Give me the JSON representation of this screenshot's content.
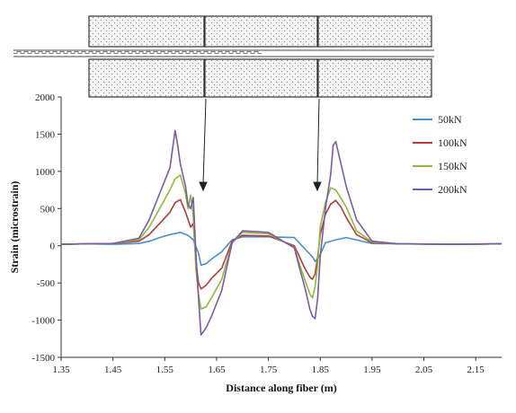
{
  "chart_data": {
    "type": "line",
    "xlabel": "Distance along fiber (m)",
    "ylabel": "Strain (microstrain)",
    "xlim": [
      1.35,
      2.2
    ],
    "ylim": [
      -1500,
      2000
    ],
    "xticks": [
      "1.35",
      "1.45",
      "1.55",
      "1.65",
      "1.75",
      "1.85",
      "1.95",
      "2.05",
      "2.15"
    ],
    "yticks": [
      "-1500",
      "-1000",
      "-500",
      "0",
      "500",
      "1000",
      "1500",
      "2000"
    ],
    "grid": false,
    "legend_position": "top-right",
    "series": [
      {
        "name": "50kN",
        "color": "#4a90c8",
        "x": [
          1.35,
          1.4,
          1.45,
          1.5,
          1.52,
          1.54,
          1.56,
          1.58,
          1.595,
          1.605,
          1.615,
          1.62,
          1.63,
          1.64,
          1.66,
          1.68,
          1.7,
          1.75,
          1.8,
          1.82,
          1.835,
          1.84,
          1.845,
          1.85,
          1.86,
          1.88,
          1.9,
          1.95,
          2.0,
          2.1,
          2.2
        ],
        "y": [
          20,
          25,
          20,
          30,
          60,
          110,
          150,
          180,
          140,
          80,
          -100,
          -260,
          -240,
          -180,
          -80,
          80,
          120,
          120,
          110,
          -40,
          -150,
          -210,
          -180,
          -120,
          40,
          80,
          110,
          30,
          25,
          20,
          25
        ]
      },
      {
        "name": "100kN",
        "color": "#b53a3a",
        "x": [
          1.35,
          1.4,
          1.45,
          1.5,
          1.52,
          1.54,
          1.56,
          1.57,
          1.58,
          1.59,
          1.6,
          1.605,
          1.61,
          1.615,
          1.62,
          1.63,
          1.64,
          1.66,
          1.68,
          1.7,
          1.75,
          1.8,
          1.81,
          1.82,
          1.83,
          1.835,
          1.84,
          1.845,
          1.85,
          1.86,
          1.87,
          1.88,
          1.89,
          1.9,
          1.92,
          1.95,
          2.0,
          2.1,
          2.2
        ],
        "y": [
          20,
          25,
          30,
          60,
          150,
          300,
          450,
          580,
          620,
          450,
          250,
          300,
          -200,
          -500,
          -580,
          -530,
          -440,
          -300,
          60,
          140,
          130,
          0,
          -150,
          -300,
          -420,
          -450,
          -380,
          -150,
          150,
          420,
          560,
          610,
          520,
          380,
          150,
          40,
          25,
          20,
          25
        ]
      },
      {
        "name": "150kN",
        "color": "#8fb83c",
        "x": [
          1.35,
          1.4,
          1.45,
          1.5,
          1.52,
          1.54,
          1.56,
          1.57,
          1.58,
          1.59,
          1.595,
          1.6,
          1.605,
          1.61,
          1.615,
          1.62,
          1.63,
          1.64,
          1.66,
          1.68,
          1.7,
          1.75,
          1.8,
          1.81,
          1.82,
          1.83,
          1.835,
          1.84,
          1.845,
          1.85,
          1.86,
          1.87,
          1.88,
          1.89,
          1.9,
          1.92,
          1.95,
          2.0,
          2.1,
          2.2
        ],
        "y": [
          20,
          25,
          30,
          80,
          250,
          500,
          750,
          900,
          950,
          700,
          500,
          680,
          400,
          -300,
          -650,
          -850,
          -820,
          -700,
          -450,
          40,
          180,
          160,
          -20,
          -250,
          -450,
          -650,
          -700,
          -550,
          -250,
          250,
          580,
          780,
          750,
          640,
          520,
          200,
          50,
          25,
          20,
          25
        ]
      },
      {
        "name": "200kN",
        "color": "#7a5aa8",
        "x": [
          1.35,
          1.4,
          1.45,
          1.5,
          1.52,
          1.54,
          1.56,
          1.565,
          1.57,
          1.575,
          1.58,
          1.59,
          1.595,
          1.6,
          1.605,
          1.61,
          1.615,
          1.62,
          1.625,
          1.63,
          1.64,
          1.66,
          1.68,
          1.7,
          1.75,
          1.8,
          1.81,
          1.82,
          1.83,
          1.835,
          1.84,
          1.845,
          1.85,
          1.86,
          1.87,
          1.875,
          1.88,
          1.89,
          1.9,
          1.92,
          1.95,
          2.0,
          2.1,
          2.2
        ],
        "y": [
          20,
          25,
          30,
          100,
          350,
          700,
          1050,
          1300,
          1550,
          1350,
          1100,
          800,
          550,
          500,
          650,
          -100,
          -700,
          -1200,
          -1150,
          -1100,
          -950,
          -600,
          40,
          200,
          180,
          -30,
          -300,
          -550,
          -850,
          -950,
          -980,
          -700,
          -150,
          500,
          950,
          1350,
          1400,
          1100,
          800,
          350,
          60,
          25,
          20,
          25
        ]
      }
    ]
  }
}
